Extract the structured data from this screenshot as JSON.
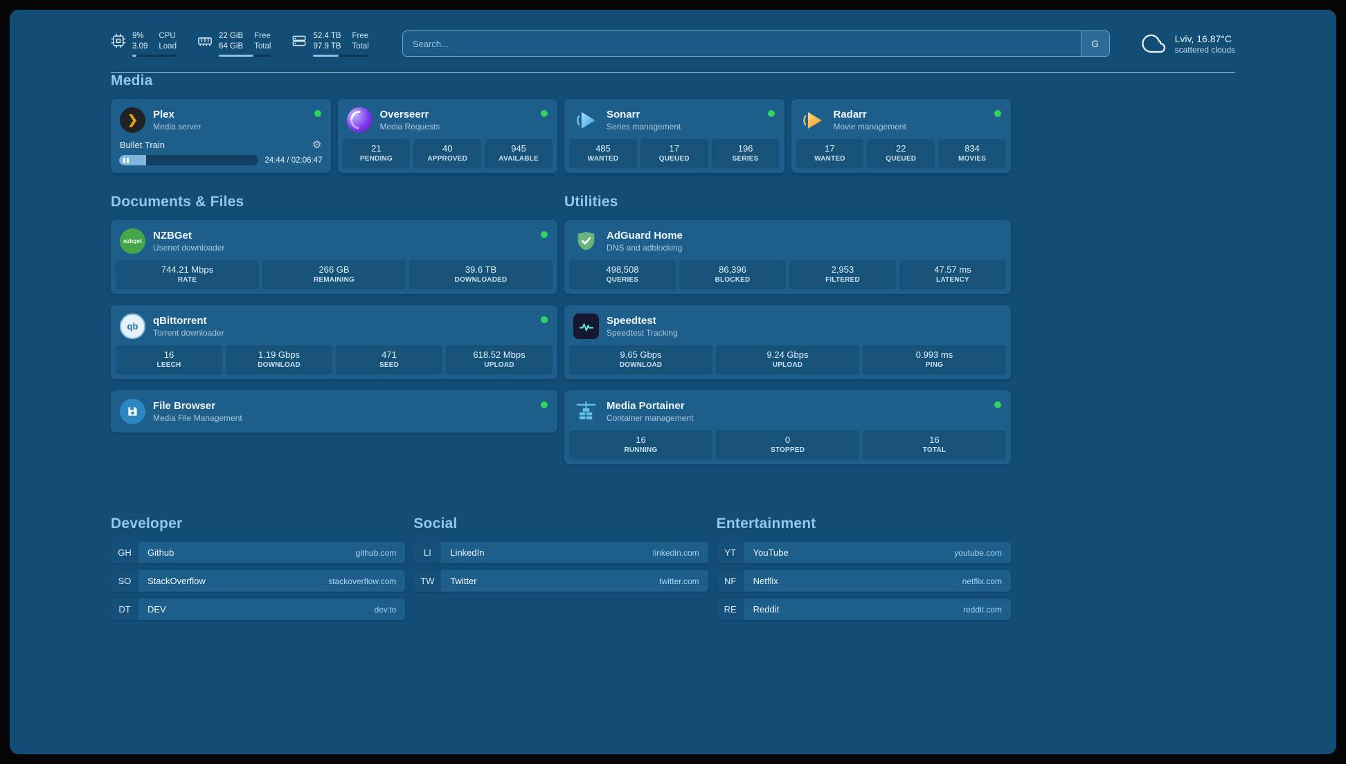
{
  "colors": {
    "background": "#124D75",
    "card": "#1E5E8A",
    "stat_box": "#175379",
    "heading": "#8FC9EF",
    "status_online": "#2FD35D",
    "plex_accent": "#E5A00D"
  },
  "topbar": {
    "resources": [
      {
        "icon": "cpu-icon",
        "rows": [
          {
            "value": "9%",
            "label": "CPU"
          },
          {
            "value": "3.09",
            "label": "Load"
          }
        ],
        "progress_pct": 9
      },
      {
        "icon": "memory-icon",
        "rows": [
          {
            "value": "22 GiB",
            "label": "Free"
          },
          {
            "value": "64 GiB",
            "label": "Total"
          }
        ],
        "progress_pct": 66
      },
      {
        "icon": "disk-icon",
        "rows": [
          {
            "value": "52.4 TB",
            "label": "Free"
          },
          {
            "value": "97.9 TB",
            "label": "Total"
          }
        ],
        "progress_pct": 46
      }
    ],
    "search": {
      "placeholder": "Search...",
      "engine_button": "G"
    },
    "weather": {
      "location": "Lviv, 16.87°C",
      "condition": "scattered clouds"
    }
  },
  "media": {
    "heading": "Media",
    "plex": {
      "name": "Plex",
      "subtitle": "Media server",
      "status": "online",
      "player": {
        "title": "Bullet Train",
        "time": "24:44 / 02:06:47",
        "progress_pct": 19.5
      }
    },
    "overseerr": {
      "name": "Overseerr",
      "subtitle": "Media Requests",
      "status": "online",
      "stats": [
        {
          "value": "21",
          "label": "PENDING"
        },
        {
          "value": "40",
          "label": "APPROVED"
        },
        {
          "value": "945",
          "label": "AVAILABLE"
        }
      ]
    },
    "sonarr": {
      "name": "Sonarr",
      "subtitle": "Series management",
      "status": "online",
      "stats": [
        {
          "value": "485",
          "label": "WANTED"
        },
        {
          "value": "17",
          "label": "QUEUED"
        },
        {
          "value": "196",
          "label": "SERIES"
        }
      ]
    },
    "radarr": {
      "name": "Radarr",
      "subtitle": "Movie management",
      "status": "online",
      "stats": [
        {
          "value": "17",
          "label": "WANTED"
        },
        {
          "value": "22",
          "label": "QUEUED"
        },
        {
          "value": "834",
          "label": "MOVIES"
        }
      ]
    }
  },
  "documents": {
    "heading": "Documents & Files",
    "nzbget": {
      "name": "NZBGet",
      "subtitle": "Usenet downloader",
      "status": "online",
      "stats": [
        {
          "value": "744.21 Mbps",
          "label": "RATE"
        },
        {
          "value": "266 GB",
          "label": "REMAINING"
        },
        {
          "value": "39.6 TB",
          "label": "DOWNLOADED"
        }
      ]
    },
    "qbittorrent": {
      "name": "qBittorrent",
      "subtitle": "Torrent downloader",
      "status": "online",
      "stats": [
        {
          "value": "16",
          "label": "LEECH"
        },
        {
          "value": "1.19 Gbps",
          "label": "DOWNLOAD"
        },
        {
          "value": "471",
          "label": "SEED"
        },
        {
          "value": "618.52 Mbps",
          "label": "UPLOAD"
        }
      ]
    },
    "filebrowser": {
      "name": "File Browser",
      "subtitle": "Media File Management",
      "status": "online"
    }
  },
  "utilities": {
    "heading": "Utilities",
    "adguard": {
      "name": "AdGuard Home",
      "subtitle": "DNS and adblocking",
      "stats": [
        {
          "value": "498,508",
          "label": "QUERIES"
        },
        {
          "value": "86,396",
          "label": "BLOCKED"
        },
        {
          "value": "2,953",
          "label": "FILTERED"
        },
        {
          "value": "47.57 ms",
          "label": "LATENCY"
        }
      ]
    },
    "speedtest": {
      "name": "Speedtest",
      "subtitle": "Speedtest Tracking",
      "stats": [
        {
          "value": "9.65 Gbps",
          "label": "DOWNLOAD"
        },
        {
          "value": "9.24 Gbps",
          "label": "UPLOAD"
        },
        {
          "value": "0.993 ms",
          "label": "PING"
        }
      ]
    },
    "portainer": {
      "name": "Media Portainer",
      "subtitle": "Container management",
      "status": "online",
      "stats": [
        {
          "value": "16",
          "label": "RUNNING"
        },
        {
          "value": "0",
          "label": "STOPPED"
        },
        {
          "value": "16",
          "label": "TOTAL"
        }
      ]
    }
  },
  "bookmarks": {
    "groups": [
      {
        "heading": "Developer",
        "items": [
          {
            "abbr": "GH",
            "name": "Github",
            "url": "github.com"
          },
          {
            "abbr": "SO",
            "name": "StackOverflow",
            "url": "stackoverflow.com"
          },
          {
            "abbr": "DT",
            "name": "DEV",
            "url": "dev.to"
          }
        ]
      },
      {
        "heading": "Social",
        "items": [
          {
            "abbr": "LI",
            "name": "LinkedIn",
            "url": "linkedin.com"
          },
          {
            "abbr": "TW",
            "name": "Twitter",
            "url": "twitter.com"
          }
        ]
      },
      {
        "heading": "Entertainment",
        "items": [
          {
            "abbr": "YT",
            "name": "YouTube",
            "url": "youtube.com"
          },
          {
            "abbr": "NF",
            "name": "Netflix",
            "url": "netflix.com"
          },
          {
            "abbr": "RE",
            "name": "Reddit",
            "url": "reddit.com"
          }
        ]
      }
    ]
  }
}
